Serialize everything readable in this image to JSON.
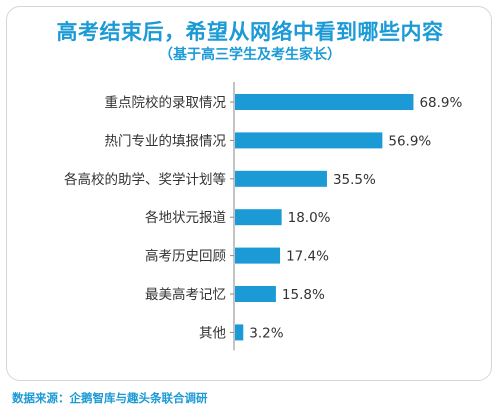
{
  "chart_data": {
    "type": "bar",
    "orientation": "horizontal",
    "title": "高考结束后，希望从网络中看到哪些内容",
    "subtitle": "（基于高三学生及考生家长）",
    "categories": [
      "重点院校的录取情况",
      "热门专业的填报情况",
      "各高校的助学、奖学计划等",
      "各地状元报道",
      "高考历史回顾",
      "最美高考记忆",
      "其他"
    ],
    "values": [
      68.9,
      56.9,
      35.5,
      18.0,
      17.4,
      15.8,
      3.2
    ],
    "value_labels": [
      "68.9%",
      "56.9%",
      "35.5%",
      "18.0%",
      "17.4%",
      "15.8%",
      "3.2%"
    ],
    "xlim": [
      0,
      80
    ],
    "grid": false,
    "bar_color": "#1b9ad6",
    "source": "数据来源：企鹅智库与趣头条联合调研"
  }
}
